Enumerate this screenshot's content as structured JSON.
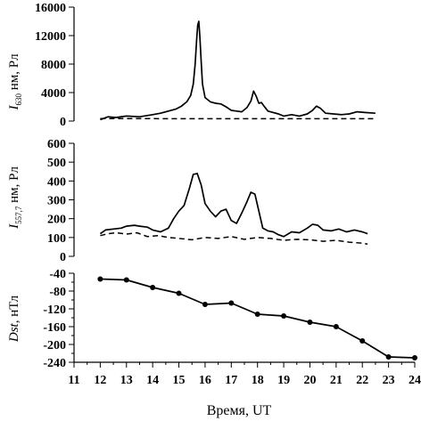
{
  "chart_data": [
    {
      "type": "line",
      "title": "",
      "ylabel_main": "I",
      "ylabel_sub": "630",
      "ylabel_unit": " нм, Рл",
      "ylim": [
        0,
        16000
      ],
      "yticks": [
        0,
        4000,
        8000,
        12000,
        16000
      ],
      "ytick_labels": [
        "0",
        "4000",
        "8000",
        "12000",
        "16000"
      ],
      "series": [
        {
          "style": "solid",
          "x": [
            12.0,
            12.3,
            12.6,
            13.0,
            13.5,
            14.0,
            14.3,
            14.6,
            14.9,
            15.1,
            15.3,
            15.45,
            15.55,
            15.62,
            15.68,
            15.72,
            15.76,
            15.8,
            15.85,
            15.9,
            16.0,
            16.2,
            16.4,
            16.6,
            16.8,
            17.0,
            17.2,
            17.4,
            17.6,
            17.75,
            17.85,
            17.95,
            18.05,
            18.15,
            18.25,
            18.4,
            18.6,
            18.8,
            19.0,
            19.3,
            19.6,
            19.9,
            20.1,
            20.25,
            20.4,
            20.6,
            20.9,
            21.2,
            21.5,
            21.8,
            22.1,
            22.5
          ],
          "y": [
            200,
            600,
            500,
            700,
            600,
            900,
            1100,
            1400,
            1700,
            2100,
            2700,
            3600,
            5200,
            8000,
            11500,
            13500,
            14000,
            12000,
            8500,
            5200,
            3300,
            2700,
            2500,
            2400,
            2000,
            1500,
            1400,
            1300,
            1900,
            2800,
            4200,
            3500,
            2500,
            2600,
            2100,
            1400,
            1200,
            1000,
            700,
            900,
            700,
            1000,
            1500,
            2100,
            1800,
            1100,
            1000,
            900,
            1000,
            1300,
            1200,
            1100
          ]
        },
        {
          "style": "dashed",
          "x": [
            12.0,
            13.0,
            14.0,
            15.0,
            16.0,
            17.0,
            18.0,
            19.0,
            20.0,
            21.0,
            22.0,
            22.5
          ],
          "y": [
            350,
            350,
            340,
            330,
            330,
            320,
            320,
            320,
            320,
            320,
            320,
            320
          ]
        }
      ]
    },
    {
      "type": "line",
      "title": "",
      "ylabel_main": "I",
      "ylabel_sub": "557,7",
      "ylabel_unit": " нм, Рл",
      "ylim": [
        0,
        600
      ],
      "yticks": [
        0,
        100,
        200,
        300,
        400,
        500,
        600
      ],
      "ytick_labels": [
        "0",
        "100",
        "200",
        "300",
        "400",
        "500",
        "600"
      ],
      "series": [
        {
          "style": "solid",
          "x": [
            12.0,
            12.2,
            12.5,
            12.8,
            13.0,
            13.3,
            13.5,
            13.8,
            14.0,
            14.3,
            14.6,
            14.8,
            15.0,
            15.2,
            15.4,
            15.55,
            15.7,
            15.85,
            16.0,
            16.2,
            16.4,
            16.6,
            16.8,
            17.0,
            17.2,
            17.4,
            17.6,
            17.75,
            17.9,
            18.05,
            18.2,
            18.4,
            18.6,
            18.8,
            19.0,
            19.3,
            19.6,
            19.9,
            20.1,
            20.3,
            20.5,
            20.8,
            21.1,
            21.4,
            21.7,
            22.0,
            22.2
          ],
          "y": [
            120,
            140,
            145,
            150,
            160,
            165,
            160,
            155,
            140,
            130,
            150,
            200,
            240,
            270,
            360,
            435,
            440,
            380,
            280,
            240,
            210,
            240,
            250,
            190,
            175,
            230,
            290,
            340,
            330,
            240,
            150,
            135,
            130,
            115,
            105,
            130,
            125,
            150,
            170,
            165,
            140,
            135,
            145,
            130,
            140,
            130,
            120
          ]
        },
        {
          "style": "dashed",
          "x": [
            12.0,
            12.3,
            12.6,
            13.0,
            13.4,
            13.8,
            14.2,
            14.6,
            15.0,
            15.5,
            16.0,
            16.5,
            17.0,
            17.5,
            18.0,
            18.5,
            19.0,
            19.5,
            20.0,
            20.5,
            21.0,
            21.5,
            22.0,
            22.2
          ],
          "y": [
            110,
            120,
            125,
            118,
            125,
            105,
            110,
            100,
            95,
            88,
            100,
            95,
            105,
            90,
            100,
            95,
            85,
            90,
            88,
            80,
            85,
            75,
            70,
            65
          ]
        }
      ]
    },
    {
      "type": "line",
      "title": "",
      "ylabel_main": "Dst",
      "ylabel_unit": ", нТл",
      "ylim": [
        -240,
        -40
      ],
      "yticks": [
        -240,
        -200,
        -160,
        -120,
        -80,
        -40
      ],
      "ytick_labels": [
        "-240",
        "-200",
        "-160",
        "-120",
        "-80",
        "-40"
      ],
      "minor_yticks": [
        -220,
        -180,
        -140,
        -100,
        -60
      ],
      "xlim": [
        11,
        24
      ],
      "xticks": [
        11,
        12,
        13,
        14,
        15,
        16,
        17,
        18,
        19,
        20,
        21,
        22,
        23,
        24
      ],
      "xtick_labels": [
        "11",
        "12",
        "13",
        "14",
        "15",
        "16",
        "17",
        "18",
        "19",
        "20",
        "21",
        "22",
        "23",
        "24"
      ],
      "xlabel": "Время, UT",
      "series": [
        {
          "style": "solid-markers",
          "x": [
            12,
            13,
            14,
            15,
            16,
            17,
            18,
            19,
            20,
            21,
            22,
            23,
            24
          ],
          "y": [
            -53,
            -55,
            -72,
            -85,
            -110,
            -107,
            -132,
            -136,
            -150,
            -160,
            -192,
            -228,
            -230
          ]
        }
      ]
    }
  ]
}
